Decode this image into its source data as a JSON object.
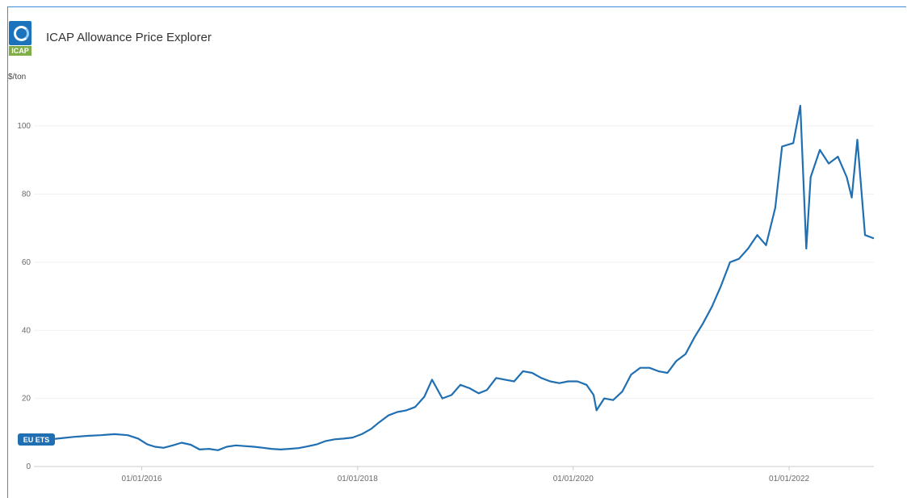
{
  "app": {
    "title": "ICAP Allowance Price Explorer",
    "logo_text": "ICAP",
    "logo_colors": {
      "top": "#1c73bc",
      "bottom": "#7fae46"
    }
  },
  "chart_data": {
    "type": "line",
    "title": "ICAP Allowance Price Explorer",
    "xlabel": "",
    "ylabel": "$/ton",
    "x_ticks": [
      "01/01/2016",
      "01/01/2018",
      "01/01/2020",
      "01/01/2022"
    ],
    "y_ticks": [
      0,
      20,
      40,
      60,
      80,
      100
    ],
    "xlim": [
      "2015-01-01",
      "2022-10-15"
    ],
    "ylim": [
      0,
      110
    ],
    "grid": true,
    "line_color": "#1f6fb2",
    "series": [
      {
        "name": "EU ETS",
        "points": [
          [
            "2015-01-01",
            7.6
          ],
          [
            "2015-02-15",
            7.9
          ],
          [
            "2015-04-01",
            8.3
          ],
          [
            "2015-05-15",
            8.7
          ],
          [
            "2015-07-01",
            9.0
          ],
          [
            "2015-08-15",
            9.2
          ],
          [
            "2015-10-01",
            9.5
          ],
          [
            "2015-11-15",
            9.2
          ],
          [
            "2015-12-20",
            8.2
          ],
          [
            "2016-01-20",
            6.5
          ],
          [
            "2016-02-15",
            5.8
          ],
          [
            "2016-03-15",
            5.5
          ],
          [
            "2016-04-15",
            6.2
          ],
          [
            "2016-05-15",
            7.0
          ],
          [
            "2016-06-15",
            6.4
          ],
          [
            "2016-07-15",
            5.0
          ],
          [
            "2016-08-15",
            5.2
          ],
          [
            "2016-09-15",
            4.8
          ],
          [
            "2016-10-15",
            5.8
          ],
          [
            "2016-11-15",
            6.2
          ],
          [
            "2016-12-15",
            6.0
          ],
          [
            "2017-01-15",
            5.8
          ],
          [
            "2017-02-15",
            5.5
          ],
          [
            "2017-03-15",
            5.2
          ],
          [
            "2017-04-15",
            5.0
          ],
          [
            "2017-05-15",
            5.2
          ],
          [
            "2017-06-15",
            5.4
          ],
          [
            "2017-07-15",
            5.9
          ],
          [
            "2017-08-15",
            6.5
          ],
          [
            "2017-09-15",
            7.5
          ],
          [
            "2017-10-15",
            8.0
          ],
          [
            "2017-11-15",
            8.2
          ],
          [
            "2017-12-15",
            8.5
          ],
          [
            "2018-01-15",
            9.5
          ],
          [
            "2018-02-15",
            11.0
          ],
          [
            "2018-03-15",
            13.0
          ],
          [
            "2018-04-15",
            15.0
          ],
          [
            "2018-05-15",
            16.0
          ],
          [
            "2018-06-15",
            16.5
          ],
          [
            "2018-07-15",
            17.5
          ],
          [
            "2018-08-15",
            20.5
          ],
          [
            "2018-09-10",
            25.5
          ],
          [
            "2018-10-15",
            20.0
          ],
          [
            "2018-11-15",
            21.0
          ],
          [
            "2018-12-15",
            24.0
          ],
          [
            "2019-01-15",
            23.0
          ],
          [
            "2019-02-15",
            21.5
          ],
          [
            "2019-03-15",
            22.5
          ],
          [
            "2019-04-15",
            26.0
          ],
          [
            "2019-05-15",
            25.5
          ],
          [
            "2019-06-15",
            25.0
          ],
          [
            "2019-07-15",
            28.0
          ],
          [
            "2019-08-15",
            27.5
          ],
          [
            "2019-09-15",
            26.0
          ],
          [
            "2019-10-15",
            25.0
          ],
          [
            "2019-11-15",
            24.5
          ],
          [
            "2019-12-15",
            25.0
          ],
          [
            "2020-01-15",
            25.0
          ],
          [
            "2020-02-15",
            24.0
          ],
          [
            "2020-03-10",
            21.0
          ],
          [
            "2020-03-20",
            16.5
          ],
          [
            "2020-04-15",
            20.0
          ],
          [
            "2020-05-15",
            19.5
          ],
          [
            "2020-06-15",
            22.0
          ],
          [
            "2020-07-15",
            27.0
          ],
          [
            "2020-08-15",
            29.0
          ],
          [
            "2020-09-15",
            29.0
          ],
          [
            "2020-10-15",
            28.0
          ],
          [
            "2020-11-15",
            27.5
          ],
          [
            "2020-12-15",
            31.0
          ],
          [
            "2021-01-15",
            33.0
          ],
          [
            "2021-02-15",
            38.0
          ],
          [
            "2021-03-15",
            42.0
          ],
          [
            "2021-04-15",
            47.0
          ],
          [
            "2021-05-15",
            53.0
          ],
          [
            "2021-06-15",
            60.0
          ],
          [
            "2021-07-15",
            61.0
          ],
          [
            "2021-08-15",
            64.0
          ],
          [
            "2021-09-15",
            68.0
          ],
          [
            "2021-10-15",
            65.0
          ],
          [
            "2021-11-15",
            76.0
          ],
          [
            "2021-12-08",
            94.0
          ],
          [
            "2022-01-15",
            95.0
          ],
          [
            "2022-02-08",
            106.0
          ],
          [
            "2022-02-28",
            64.0
          ],
          [
            "2022-03-15",
            85.0
          ],
          [
            "2022-04-15",
            93.0
          ],
          [
            "2022-05-15",
            89.0
          ],
          [
            "2022-06-15",
            91.0
          ],
          [
            "2022-07-15",
            85.0
          ],
          [
            "2022-08-01",
            79.0
          ],
          [
            "2022-08-20",
            96.0
          ],
          [
            "2022-09-15",
            68.0
          ],
          [
            "2022-10-15",
            67.0
          ]
        ]
      }
    ]
  }
}
